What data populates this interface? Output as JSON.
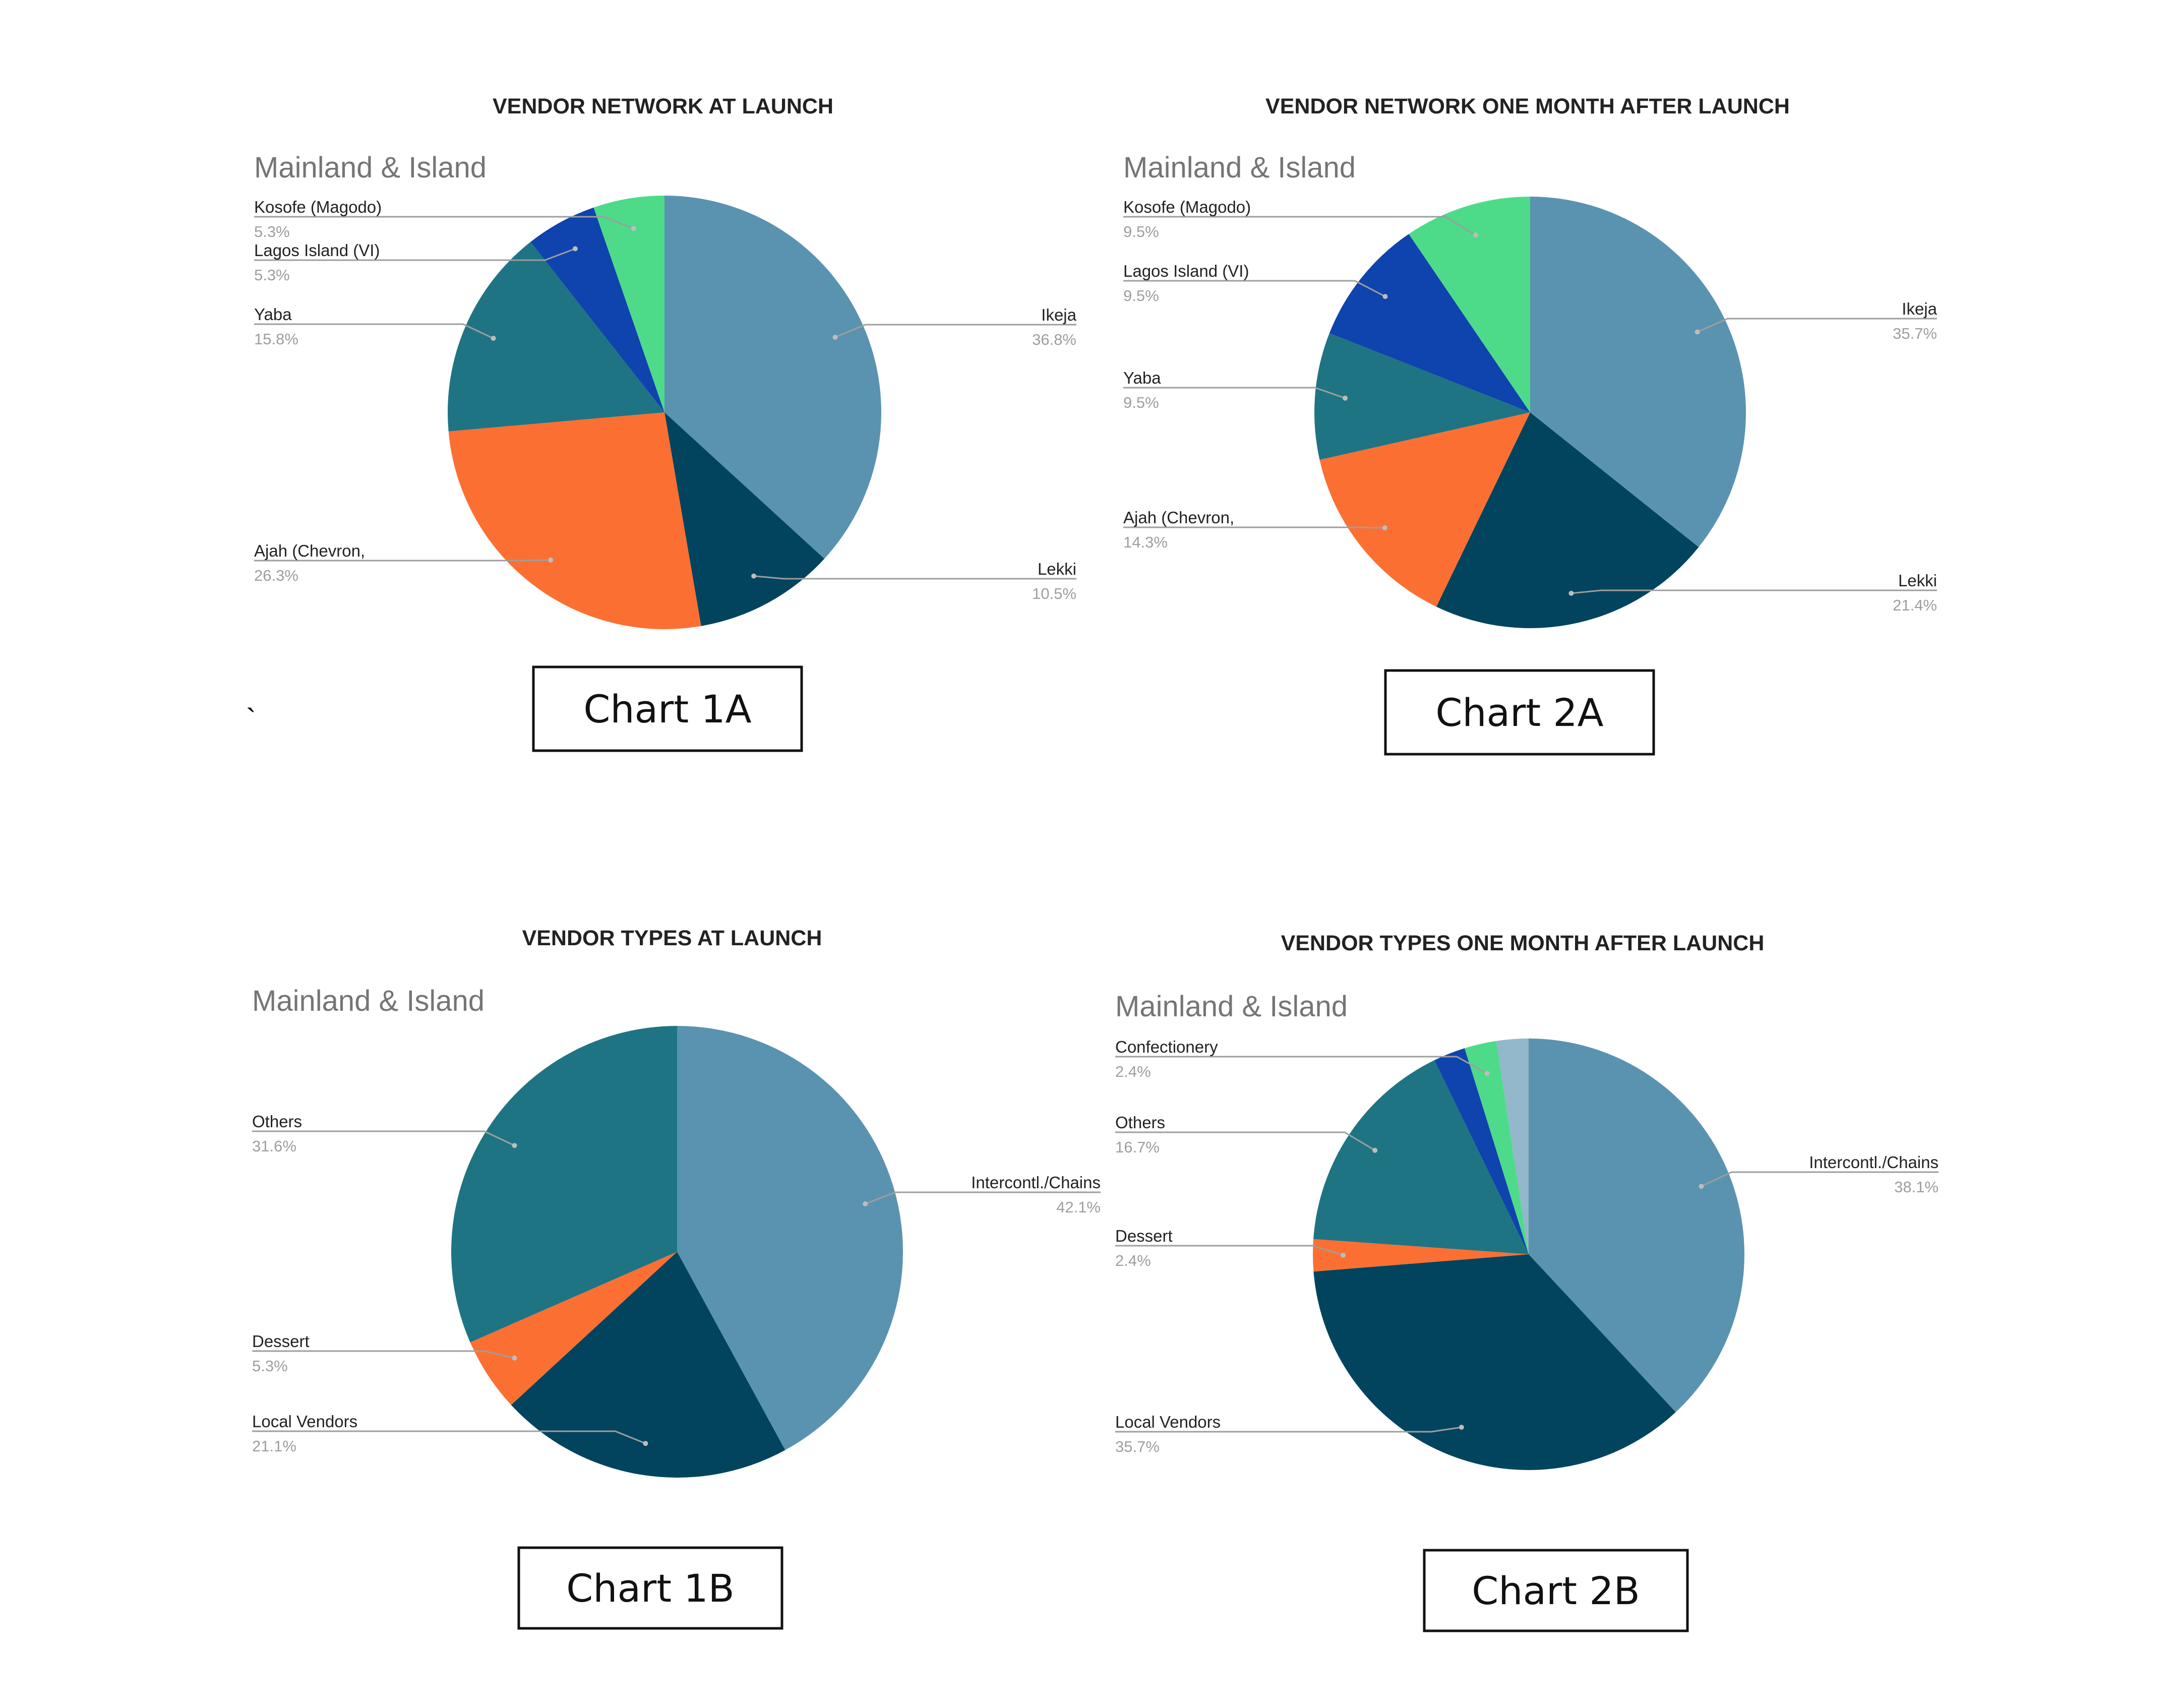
{
  "stray_mark": "`",
  "chart_data": [
    {
      "id": "1A",
      "type": "pie",
      "title": "VENDOR NETWORK AT LAUNCH",
      "subtitle": "Mainland & Island",
      "caption": "Chart 1A",
      "slices": [
        {
          "label": "Ikeja",
          "value": 36.8,
          "pct": "36.8%",
          "color": "#5a93b0"
        },
        {
          "label": "Lekki",
          "value": 10.5,
          "pct": "10.5%",
          "color": "#02445e"
        },
        {
          "label": "Ajah (Chevron,",
          "value": 26.3,
          "pct": "26.3%",
          "color": "#fc6f33"
        },
        {
          "label": "Yaba",
          "value": 15.8,
          "pct": "15.8%",
          "color": "#1e7483"
        },
        {
          "label": "Lagos Island (VI)",
          "value": 5.3,
          "pct": "5.3%",
          "color": "#0f43ad"
        },
        {
          "label": "Kosofe (Magodo)",
          "value": 5.3,
          "pct": "5.3%",
          "color": "#4ddb8a"
        }
      ]
    },
    {
      "id": "2A",
      "type": "pie",
      "title": "VENDOR NETWORK ONE MONTH AFTER LAUNCH",
      "subtitle": "Mainland & Island",
      "caption": "Chart 2A",
      "slices": [
        {
          "label": "Ikeja",
          "value": 35.7,
          "pct": "35.7%",
          "color": "#5a93b0"
        },
        {
          "label": "Lekki",
          "value": 21.4,
          "pct": "21.4%",
          "color": "#02445e"
        },
        {
          "label": "Ajah (Chevron,",
          "value": 14.3,
          "pct": "14.3%",
          "color": "#fc6f33"
        },
        {
          "label": "Yaba",
          "value": 9.5,
          "pct": "9.5%",
          "color": "#1e7483"
        },
        {
          "label": "Lagos Island (VI)",
          "value": 9.5,
          "pct": "9.5%",
          "color": "#0f43ad"
        },
        {
          "label": "Kosofe (Magodo)",
          "value": 9.5,
          "pct": "9.5%",
          "color": "#4ddb8a"
        }
      ]
    },
    {
      "id": "1B",
      "type": "pie",
      "title": "VENDOR TYPES AT LAUNCH",
      "subtitle": "Mainland & Island",
      "caption": "Chart 1B",
      "slices": [
        {
          "label": "Intercontl./Chains",
          "value": 42.1,
          "pct": "42.1%",
          "color": "#5a93b0"
        },
        {
          "label": "Local Vendors",
          "value": 21.1,
          "pct": "21.1%",
          "color": "#02445e"
        },
        {
          "label": "Dessert",
          "value": 5.3,
          "pct": "5.3%",
          "color": "#fc6f33"
        },
        {
          "label": "Others",
          "value": 31.6,
          "pct": "31.6%",
          "color": "#1e7483"
        }
      ]
    },
    {
      "id": "2B",
      "type": "pie",
      "title": "VENDOR TYPES ONE MONTH AFTER LAUNCH",
      "subtitle": "Mainland & Island",
      "caption": "Chart 2B",
      "slices": [
        {
          "label": "Intercontl./Chains",
          "value": 38.1,
          "pct": "38.1%",
          "color": "#5a93b0"
        },
        {
          "label": "Local Vendors",
          "value": 35.7,
          "pct": "35.7%",
          "color": "#02445e"
        },
        {
          "label": "Dessert",
          "value": 2.4,
          "pct": "2.4%",
          "color": "#fc6f33"
        },
        {
          "label": "Others",
          "value": 16.7,
          "pct": "16.7%",
          "color": "#1e7483"
        },
        {
          "label": "",
          "value": 2.4,
          "pct": "",
          "color": "#0f43ad"
        },
        {
          "label": "Confectionery",
          "value": 2.4,
          "pct": "2.4%",
          "color": "#4ddb8a"
        },
        {
          "label": "",
          "value": 2.4,
          "pct": "",
          "color": "#93b7cb"
        }
      ]
    }
  ]
}
